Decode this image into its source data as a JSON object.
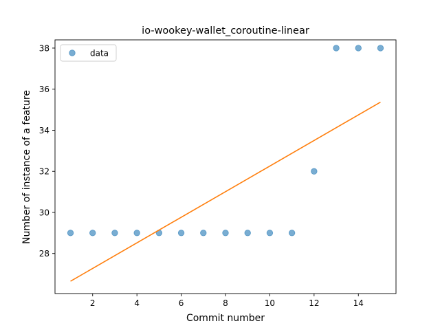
{
  "chart_data": {
    "type": "scatter",
    "title": "io-wookey-wallet_coroutine-linear",
    "xlabel": "Commit number",
    "ylabel": "Number of instance of a feature",
    "xlim": [
      0.3,
      15.7
    ],
    "ylim": [
      26.05,
      38.4
    ],
    "xticks": [
      2,
      4,
      6,
      8,
      10,
      12,
      14
    ],
    "yticks": [
      28,
      30,
      32,
      34,
      36,
      38
    ],
    "legend": {
      "position": "top-left",
      "entries": [
        "data"
      ]
    },
    "grid": false,
    "series": [
      {
        "name": "data",
        "kind": "scatter",
        "color": "#1f77b4",
        "x": [
          1,
          2,
          3,
          4,
          5,
          6,
          7,
          8,
          9,
          10,
          11,
          12,
          13,
          14,
          15
        ],
        "y": [
          29,
          29,
          29,
          29,
          29,
          29,
          29,
          29,
          29,
          29,
          29,
          32,
          38,
          38,
          38
        ]
      },
      {
        "kind": "line",
        "color": "#ff7f0e",
        "x": [
          1,
          15
        ],
        "y": [
          26.65,
          35.37
        ]
      }
    ]
  }
}
